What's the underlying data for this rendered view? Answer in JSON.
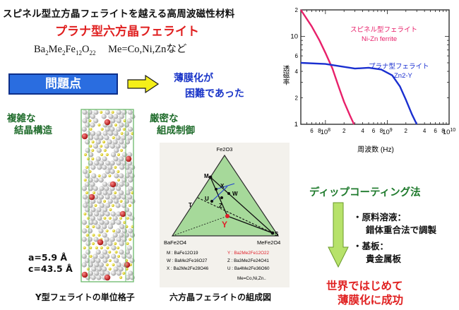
{
  "header": {
    "heading": "スピネル型立方晶フェライトを越える高周波磁性材料",
    "subtitle": "プラナ型六方晶フェライト",
    "formula_prefix": "Ba",
    "formula_parts": [
      "2",
      "Me",
      "2",
      "Fe",
      "12",
      "O",
      "22"
    ],
    "formula_suffix": "Me=Co,Ni,Znなど"
  },
  "problem": {
    "box_label": "問題点",
    "note_line1": "薄膜化が",
    "note_line2": "困難であった"
  },
  "notes": {
    "complex_line1": "複雑な",
    "complex_line2": "結晶構造",
    "strict_line1": "厳密な",
    "strict_line2": "組成制御"
  },
  "crystal": {
    "lattice_a": "a=5.9 Å",
    "lattice_c": "c=43.5 Å",
    "caption": "Y型フェライトの単位格子"
  },
  "phase_diagram": {
    "caption": "六方晶フェライトの組成図",
    "apex_top": "Fe2O3",
    "apex_left": "BaFe2O4",
    "apex_right": "MeFe2O4",
    "points": [
      "M",
      "X",
      "W",
      "U",
      "Z",
      "Y",
      "T",
      "S"
    ],
    "legend": [
      {
        "k": "M",
        "v": "BaFe12O19"
      },
      {
        "k": "W",
        "v": "BaMe2Fe16O27"
      },
      {
        "k": "X",
        "v": "Ba2Me2Fe28O46"
      },
      {
        "k": "Y",
        "v": "Ba2Me2Fe12O22"
      },
      {
        "k": "Z",
        "v": "Ba3Me2Fe24O41"
      },
      {
        "k": "U",
        "v": "Ba4Me2Fe36O60"
      }
    ],
    "legend_footer": "Me=Co,Ni,Zn..",
    "colors": {
      "fill": "#a6d99a",
      "y_point": "#e0202a",
      "line": "#101010"
    }
  },
  "chart_data": {
    "type": "line",
    "x_scale": "log",
    "y_scale": "log",
    "xlabel": "周波数 (Hz)",
    "ylabel": "透磁率",
    "x_tick_labels": [
      "10^8",
      "10^9",
      "10^10"
    ],
    "y_tick_labels": [
      "1",
      "10"
    ],
    "xlim": [
      40000000.0,
      10000000000.0
    ],
    "ylim": [
      1,
      20
    ],
    "series": [
      {
        "name": "スピネル型フェライト Ni-Zn ferrite",
        "color": "#e8206a",
        "points": [
          [
            40000000.0,
            20
          ],
          [
            60000000.0,
            13
          ],
          [
            80000000.0,
            9
          ],
          [
            100000000.0,
            6.5
          ],
          [
            130000000.0,
            4.3
          ],
          [
            160000000.0,
            2.8
          ],
          [
            200000000.0,
            1.8
          ],
          [
            250000000.0,
            1.25
          ],
          [
            290000000.0,
            1.0
          ]
        ]
      },
      {
        "name": "プラナ型フェライト Zn2-Y",
        "color": "#1a2fd0",
        "points": [
          [
            40000000.0,
            5.0
          ],
          [
            100000000.0,
            4.85
          ],
          [
            200000000.0,
            4.5
          ],
          [
            300000000.0,
            4.3
          ],
          [
            500000000.0,
            4.4
          ],
          [
            800000000.0,
            4.2
          ],
          [
            1200000000.0,
            3.6
          ],
          [
            1600000000.0,
            2.7
          ],
          [
            2000000000.0,
            1.9
          ],
          [
            2500000000.0,
            1.3
          ],
          [
            3000000000.0,
            1.0
          ]
        ]
      }
    ],
    "legend": [
      {
        "line1": "スピネル型フェライト",
        "line2": "Ni-Zn ferrite",
        "color": "#e8206a"
      },
      {
        "line1": "プラナ型フェライト",
        "line2": "Zn2-Y",
        "color": "#1a2fd0"
      }
    ]
  },
  "dip_coating": {
    "title": "ディップコーティング法",
    "step1_label": "・原料溶液：",
    "step1_detail": "錯体重合法で調製",
    "step2_label": "・基板：",
    "step2_detail": "貴金属板",
    "arrow_color": "#b7e26a"
  },
  "result": {
    "line1": "世界ではじめて",
    "line2": "薄膜化に成功"
  }
}
